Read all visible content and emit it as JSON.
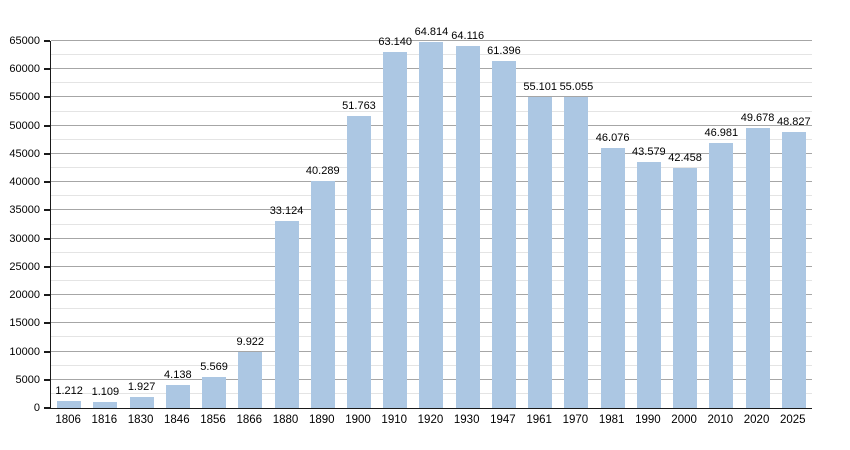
{
  "chart_data": {
    "type": "bar",
    "title": "",
    "xlabel": "",
    "ylabel": "",
    "categories": [
      "1806",
      "1816",
      "1830",
      "1846",
      "1856",
      "1866",
      "1880",
      "1890",
      "1900",
      "1910",
      "1920",
      "1930",
      "1947",
      "1961",
      "1970",
      "1981",
      "1990",
      "2000",
      "2010",
      "2020",
      "2025"
    ],
    "values": [
      1212,
      1109,
      1927,
      4138,
      5569,
      9922,
      33124,
      40289,
      51763,
      63140,
      64814,
      64116,
      61396,
      55101,
      55055,
      46076,
      43579,
      42458,
      46981,
      49678,
      48827
    ],
    "value_labels": [
      "1.212",
      "1.109",
      "1.927",
      "4.138",
      "5.569",
      "9.922",
      "33.124",
      "40.289",
      "51.763",
      "63.140",
      "64.814",
      "64.116",
      "61.396",
      "55.101",
      "55.055",
      "46.076",
      "43.579",
      "42.458",
      "46.981",
      "49.678",
      "48.827"
    ],
    "ylim": [
      0,
      65000
    ],
    "y_ticks": [
      0,
      5000,
      10000,
      15000,
      20000,
      25000,
      30000,
      35000,
      40000,
      45000,
      50000,
      55000,
      60000,
      65000
    ],
    "y_major_step": 5000,
    "y_minor_step": 2500,
    "grid": "horizontal major and minor, no vertical gridlines",
    "legend": "none",
    "bar_color": "#ACC7E3",
    "major_grid_color": "#a6a6a6",
    "minor_grid_color": "#e4e4e4",
    "axis_color": "#1a1a1a",
    "background_color": "#ffffff"
  }
}
